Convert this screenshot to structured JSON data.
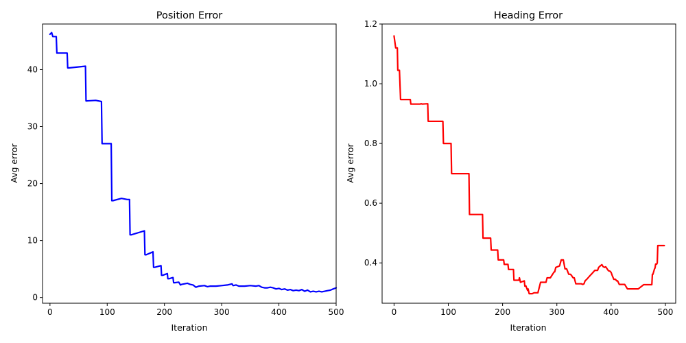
{
  "chart_data": [
    {
      "type": "line",
      "title": "Position Error",
      "xlabel": "Iteration",
      "ylabel": "Avg error",
      "xlim": [
        -13,
        500
      ],
      "ylim": [
        -1,
        48
      ],
      "xticks": [
        0,
        100,
        200,
        300,
        400,
        500
      ],
      "yticks": [
        0,
        10,
        20,
        30,
        40
      ],
      "color": "#0000ff",
      "series": [
        {
          "x": [
            0,
            3,
            5,
            7,
            11,
            12,
            14,
            30,
            31,
            33,
            62,
            63,
            64,
            80,
            90,
            91,
            92,
            107,
            108,
            110,
            125,
            135,
            139,
            140,
            142,
            165,
            166,
            168,
            180,
            181,
            183,
            194,
            195,
            197,
            205,
            206,
            208,
            215,
            216,
            218,
            225,
            228,
            230,
            240,
            245,
            250,
            255,
            260,
            270,
            275,
            280,
            290,
            300,
            310,
            318,
            320,
            325,
            330,
            340,
            350,
            360,
            365,
            370,
            375,
            380,
            385,
            390,
            395,
            400,
            405,
            410,
            415,
            420,
            425,
            430,
            435,
            440,
            445,
            450,
            455,
            460,
            465,
            470,
            475,
            480,
            485,
            490,
            495,
            500
          ],
          "y": [
            46.2,
            46.5,
            45.8,
            45.8,
            45.8,
            42.9,
            42.9,
            42.9,
            40.3,
            40.3,
            40.6,
            34.5,
            34.5,
            34.6,
            34.4,
            27.0,
            27.0,
            27.0,
            17.0,
            17.0,
            17.4,
            17.2,
            17.2,
            11.0,
            11.0,
            11.7,
            7.5,
            7.5,
            8.0,
            5.3,
            5.3,
            5.6,
            3.9,
            3.9,
            4.2,
            3.3,
            3.3,
            3.5,
            2.6,
            2.6,
            2.7,
            2.2,
            2.3,
            2.5,
            2.3,
            2.2,
            1.8,
            2.0,
            2.1,
            1.9,
            2.0,
            2.0,
            2.1,
            2.2,
            2.4,
            2.1,
            2.2,
            2.0,
            2.0,
            2.1,
            2.0,
            2.1,
            1.8,
            1.7,
            1.7,
            1.8,
            1.7,
            1.5,
            1.6,
            1.4,
            1.5,
            1.3,
            1.4,
            1.2,
            1.3,
            1.2,
            1.4,
            1.1,
            1.3,
            1.0,
            1.1,
            1.0,
            1.1,
            1.0,
            1.1,
            1.2,
            1.3,
            1.5,
            1.7
          ]
        }
      ]
    },
    {
      "type": "line",
      "title": "Heading Error",
      "xlabel": "Iteration",
      "ylabel": "Avg error",
      "xlim": [
        -22,
        519
      ],
      "ylim": [
        0.265,
        1.2
      ],
      "xticks": [
        0,
        100,
        200,
        300,
        400,
        500
      ],
      "yticks": [
        0.4,
        0.6,
        0.8,
        1.0,
        1.2
      ],
      "color": "#ff0000",
      "series": [
        {
          "x": [
            0,
            3,
            4,
            6,
            7,
            9,
            10,
            12,
            13,
            30,
            31,
            33,
            48,
            50,
            52,
            62,
            63,
            65,
            90,
            91,
            93,
            105,
            106,
            108,
            138,
            139,
            141,
            163,
            164,
            166,
            178,
            179,
            181,
            191,
            192,
            194,
            202,
            203,
            205,
            210,
            211,
            213,
            220,
            221,
            223,
            230,
            231,
            233,
            240,
            241,
            243,
            246,
            247,
            249,
            250,
            252,
            253,
            255,
            256,
            258,
            265,
            270,
            272,
            280,
            282,
            285,
            286,
            288,
            295,
            296,
            298,
            305,
            308,
            310,
            312,
            315,
            318,
            322,
            325,
            327,
            328,
            330,
            332,
            335,
            340,
            342,
            345,
            348,
            350,
            352,
            355,
            360,
            365,
            370,
            375,
            377,
            380,
            383,
            385,
            388,
            390,
            392,
            395,
            398,
            400,
            402,
            405,
            408,
            410,
            412,
            415,
            420,
            425,
            430,
            435,
            440,
            445,
            450,
            460,
            465,
            470,
            475,
            476,
            477,
            480,
            481,
            482,
            484,
            485,
            486,
            488,
            490,
            495,
            498
          ],
          "y": [
            1.16,
            1.12,
            1.12,
            1.12,
            1.045,
            1.045,
            1.045,
            0.947,
            0.947,
            0.947,
            0.932,
            0.932,
            0.932,
            0.933,
            0.932,
            0.933,
            0.874,
            0.874,
            0.874,
            0.8,
            0.8,
            0.8,
            0.699,
            0.699,
            0.699,
            0.562,
            0.562,
            0.562,
            0.483,
            0.483,
            0.483,
            0.443,
            0.443,
            0.443,
            0.41,
            0.41,
            0.41,
            0.395,
            0.395,
            0.395,
            0.378,
            0.378,
            0.378,
            0.342,
            0.342,
            0.342,
            0.35,
            0.335,
            0.34,
            0.322,
            0.323,
            0.308,
            0.313,
            0.297,
            0.297,
            0.297,
            0.297,
            0.297,
            0.298,
            0.3,
            0.3,
            0.335,
            0.335,
            0.335,
            0.35,
            0.35,
            0.35,
            0.35,
            0.37,
            0.37,
            0.385,
            0.39,
            0.41,
            0.41,
            0.41,
            0.38,
            0.38,
            0.362,
            0.362,
            0.358,
            0.355,
            0.35,
            0.35,
            0.33,
            0.33,
            0.33,
            0.33,
            0.328,
            0.33,
            0.34,
            0.345,
            0.355,
            0.365,
            0.375,
            0.375,
            0.385,
            0.39,
            0.394,
            0.388,
            0.385,
            0.387,
            0.382,
            0.374,
            0.372,
            0.368,
            0.358,
            0.345,
            0.345,
            0.34,
            0.34,
            0.328,
            0.328,
            0.328,
            0.313,
            0.313,
            0.313,
            0.313,
            0.313,
            0.327,
            0.327,
            0.327,
            0.327,
            0.362,
            0.362,
            0.38,
            0.383,
            0.396,
            0.396,
            0.4,
            0.458,
            0.458,
            0.458,
            0.458,
            0.458
          ]
        }
      ]
    }
  ]
}
